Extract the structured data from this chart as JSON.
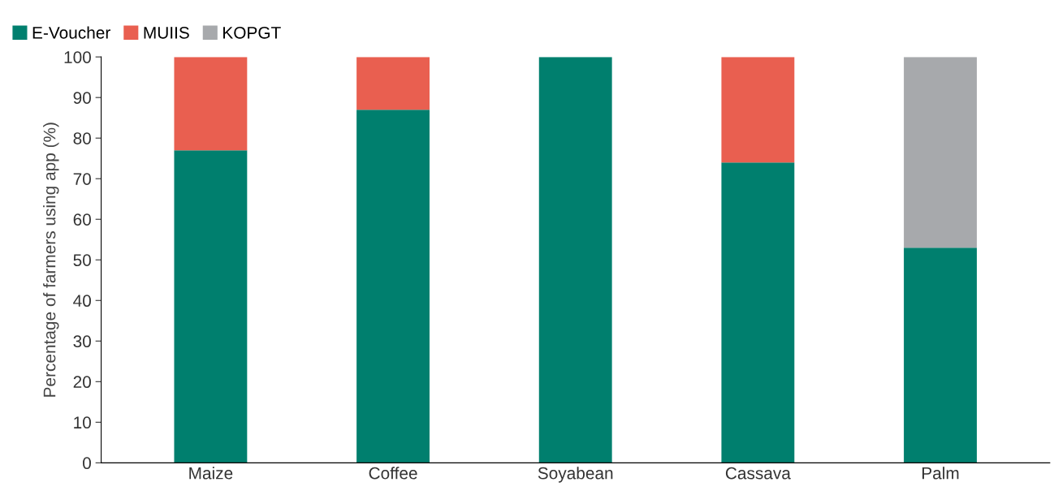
{
  "chart_data": {
    "type": "bar",
    "stacked": true,
    "ylabel": "Percentage of farmers using app (%)",
    "categories": [
      "Maize",
      "Coffee",
      "Soyabean",
      "Cassava",
      "Palm"
    ],
    "series": [
      {
        "name": "E-Voucher",
        "color": "#007f6e",
        "values": [
          77,
          87,
          100,
          74,
          53
        ]
      },
      {
        "name": "MUIIS",
        "color": "#e95f50",
        "values": [
          23,
          13,
          0,
          26,
          0
        ]
      },
      {
        "name": "KOPGT",
        "color": "#a7a9ac",
        "values": [
          0,
          0,
          0,
          0,
          47
        ]
      }
    ],
    "ylim": [
      0,
      100
    ],
    "yticks": [
      0,
      10,
      20,
      30,
      40,
      50,
      60,
      70,
      80,
      90,
      100
    ],
    "grid": false,
    "legend": "top left"
  }
}
